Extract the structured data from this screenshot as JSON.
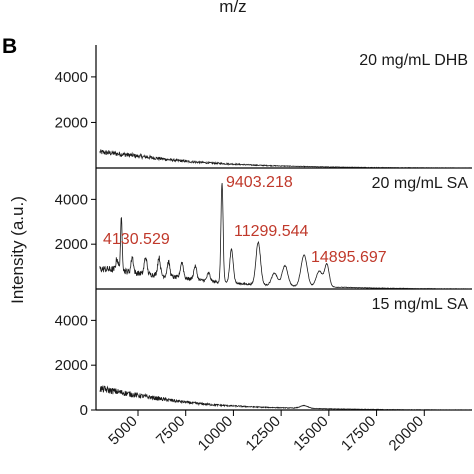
{
  "figure": {
    "panel_letter": "B",
    "top_cut_label": "m/z",
    "y_axis_title": "Intensity (a.u.)"
  },
  "chart_data": {
    "type": "line",
    "xlabel": "",
    "ylabel": "Intensity (a.u.)",
    "xlim": [
      2800,
      22500
    ],
    "x_ticks": [
      5000,
      7500,
      10000,
      12500,
      15000,
      17500,
      20000
    ],
    "x_tick_labels": [
      "5000",
      "7500",
      "10000",
      "12500",
      "15000",
      "17500",
      "20000"
    ],
    "panels": [
      {
        "label": "20 mg/mL DHB",
        "ylim": [
          0,
          5400
        ],
        "y_ticks": [
          2000,
          4000
        ],
        "y_tick_labels": [
          "2000",
          "4000"
        ],
        "baseline": [
          [
            3000,
            700
          ],
          [
            4000,
            620
          ],
          [
            5000,
            520
          ],
          [
            6000,
            430
          ],
          [
            7000,
            330
          ],
          [
            8000,
            260
          ],
          [
            9000,
            210
          ],
          [
            10000,
            170
          ],
          [
            11000,
            130
          ],
          [
            12000,
            100
          ],
          [
            13000,
            80
          ],
          [
            14000,
            60
          ],
          [
            15000,
            45
          ],
          [
            16000,
            35
          ],
          [
            17000,
            25
          ],
          [
            18000,
            18
          ],
          [
            19000,
            12
          ],
          [
            20000,
            8
          ],
          [
            21000,
            5
          ],
          [
            22500,
            0
          ]
        ],
        "peaks": [],
        "annotations": []
      },
      {
        "label": "20 mg/mL SA",
        "ylim": [
          0,
          5400
        ],
        "y_ticks": [
          2000,
          4000
        ],
        "y_tick_labels": [
          "2000",
          "4000"
        ],
        "baseline": [
          [
            3000,
            900
          ],
          [
            4000,
            850
          ],
          [
            5000,
            700
          ],
          [
            6000,
            620
          ],
          [
            7000,
            520
          ],
          [
            8000,
            420
          ],
          [
            9000,
            330
          ],
          [
            10000,
            260
          ],
          [
            11000,
            200
          ],
          [
            12000,
            160
          ],
          [
            13000,
            130
          ],
          [
            14000,
            110
          ],
          [
            15000,
            90
          ],
          [
            16000,
            70
          ],
          [
            17000,
            50
          ],
          [
            18000,
            35
          ],
          [
            19000,
            25
          ],
          [
            20000,
            15
          ],
          [
            21000,
            8
          ],
          [
            22500,
            0
          ]
        ],
        "peaks": [
          {
            "x": 4130.529,
            "y": 2300,
            "w": 45
          },
          {
            "x": 3900,
            "y": 500,
            "w": 60
          },
          {
            "x": 4700,
            "y": 700,
            "w": 60
          },
          {
            "x": 5400,
            "y": 750,
            "w": 70
          },
          {
            "x": 6100,
            "y": 800,
            "w": 70
          },
          {
            "x": 6600,
            "y": 650,
            "w": 70
          },
          {
            "x": 7300,
            "y": 700,
            "w": 80
          },
          {
            "x": 8000,
            "y": 600,
            "w": 80
          },
          {
            "x": 8700,
            "y": 350,
            "w": 80
          },
          {
            "x": 9403.218,
            "y": 4450,
            "w": 55
          },
          {
            "x": 9900,
            "y": 1500,
            "w": 90
          },
          {
            "x": 11299.544,
            "y": 1900,
            "w": 120
          },
          {
            "x": 12150,
            "y": 550,
            "w": 150
          },
          {
            "x": 12700,
            "y": 900,
            "w": 150
          },
          {
            "x": 13700,
            "y": 1400,
            "w": 160
          },
          {
            "x": 14500,
            "y": 700,
            "w": 160
          },
          {
            "x": 14895.697,
            "y": 1000,
            "w": 120
          }
        ],
        "annotations": [
          "4130.529",
          "9403.218",
          "11299.544",
          "14895.697"
        ]
      },
      {
        "label": "15 mg/mL SA",
        "ylim": [
          0,
          5400
        ],
        "y_ticks": [
          0,
          2000,
          4000
        ],
        "y_tick_labels": [
          "0",
          "2000",
          "4000"
        ],
        "baseline": [
          [
            3000,
            950
          ],
          [
            4000,
            800
          ],
          [
            5000,
            650
          ],
          [
            6000,
            520
          ],
          [
            7000,
            400
          ],
          [
            8000,
            300
          ],
          [
            9000,
            230
          ],
          [
            10000,
            180
          ],
          [
            11000,
            140
          ],
          [
            12000,
            110
          ],
          [
            13000,
            90
          ],
          [
            14000,
            70
          ],
          [
            15000,
            55
          ],
          [
            16000,
            40
          ],
          [
            17000,
            30
          ],
          [
            18000,
            20
          ],
          [
            19000,
            12
          ],
          [
            20000,
            8
          ],
          [
            21000,
            4
          ],
          [
            22500,
            0
          ]
        ],
        "peaks": [
          {
            "x": 13700,
            "y": 120,
            "w": 200
          }
        ],
        "annotations": []
      }
    ]
  }
}
